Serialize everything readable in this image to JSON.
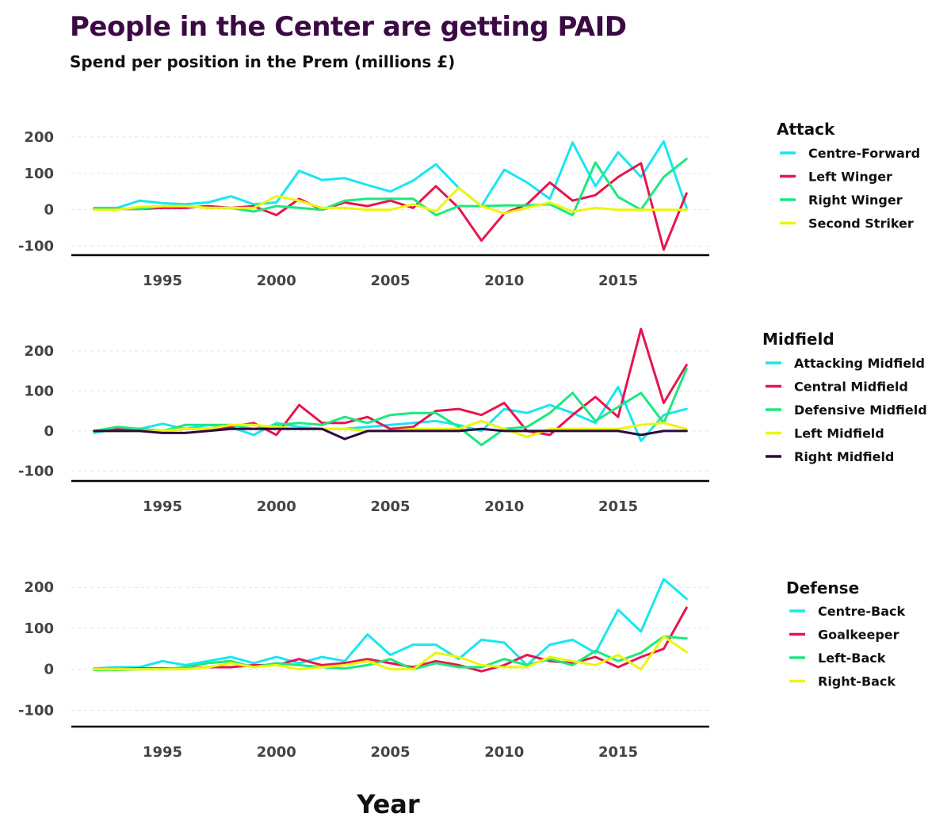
{
  "title": "People in the Center are getting PAID",
  "subtitle": "Spend per position in the Prem (millions £)",
  "xlabel": "Year",
  "chart_data": [
    {
      "type": "line",
      "legend_title": "Attack",
      "ylim": [
        -125,
        250
      ],
      "yticks": [
        -100,
        0,
        100,
        200
      ],
      "xlim": [
        1991,
        2019
      ],
      "xticks": [
        1995,
        2000,
        2005,
        2010,
        2015
      ],
      "grid": true,
      "legend": "right",
      "x": [
        1992,
        1993,
        1994,
        1995,
        1996,
        1997,
        1998,
        1999,
        2000,
        2001,
        2002,
        2003,
        2004,
        2005,
        2006,
        2007,
        2008,
        2009,
        2010,
        2011,
        2012,
        2013,
        2014,
        2015,
        2016,
        2017,
        2018
      ],
      "series": [
        {
          "name": "Centre-Forward",
          "color": "#19e6f2",
          "values": [
            5,
            5,
            25,
            18,
            15,
            20,
            37,
            15,
            20,
            107,
            82,
            87,
            68,
            50,
            80,
            125,
            60,
            10,
            110,
            75,
            30,
            185,
            65,
            158,
            90,
            188,
            5
          ]
        },
        {
          "name": "Left Winger",
          "color": "#e8154f",
          "values": [
            2,
            2,
            2,
            5,
            5,
            10,
            5,
            10,
            -15,
            30,
            0,
            20,
            10,
            25,
            5,
            65,
            5,
            -85,
            -10,
            15,
            75,
            25,
            40,
            90,
            128,
            -110,
            45
          ]
        },
        {
          "name": "Right Winger",
          "color": "#1de880",
          "values": [
            2,
            2,
            2,
            10,
            10,
            5,
            5,
            -5,
            10,
            5,
            0,
            25,
            30,
            30,
            30,
            -15,
            10,
            10,
            12,
            12,
            15,
            -15,
            130,
            35,
            0,
            90,
            140
          ]
        },
        {
          "name": "Second Striker",
          "color": "#eef50d",
          "values": [
            0,
            0,
            8,
            10,
            10,
            5,
            5,
            5,
            37,
            25,
            5,
            5,
            0,
            0,
            15,
            -5,
            60,
            10,
            -10,
            5,
            20,
            -5,
            5,
            0,
            0,
            0,
            0
          ]
        }
      ]
    },
    {
      "type": "line",
      "legend_title": "Midfield",
      "ylim": [
        -125,
        275
      ],
      "yticks": [
        -100,
        0,
        100,
        200
      ],
      "xlim": [
        1991,
        2019
      ],
      "xticks": [
        1995,
        2000,
        2005,
        2010,
        2015
      ],
      "grid": true,
      "legend": "right",
      "x": [
        1992,
        1993,
        1994,
        1995,
        1996,
        1997,
        1998,
        1999,
        2000,
        2001,
        2002,
        2003,
        2004,
        2005,
        2006,
        2007,
        2008,
        2009,
        2010,
        2011,
        2012,
        2013,
        2014,
        2015,
        2016,
        2017,
        2018
      ],
      "series": [
        {
          "name": "Attacking Midfield",
          "color": "#19e6f2",
          "values": [
            -5,
            5,
            5,
            18,
            5,
            15,
            10,
            -10,
            20,
            10,
            5,
            5,
            10,
            15,
            20,
            25,
            15,
            0,
            55,
            45,
            65,
            45,
            20,
            110,
            -25,
            40,
            55
          ]
        },
        {
          "name": "Central Midfield",
          "color": "#e8154f",
          "values": [
            0,
            5,
            5,
            0,
            5,
            5,
            10,
            20,
            -10,
            65,
            20,
            20,
            35,
            5,
            10,
            50,
            55,
            40,
            70,
            0,
            -10,
            40,
            85,
            35,
            255,
            70,
            165
          ]
        },
        {
          "name": "Defensive Midfield",
          "color": "#1de880",
          "values": [
            0,
            10,
            5,
            0,
            15,
            15,
            15,
            5,
            15,
            20,
            15,
            35,
            20,
            40,
            45,
            45,
            10,
            -35,
            5,
            10,
            45,
            95,
            25,
            60,
            95,
            20,
            155
          ]
        },
        {
          "name": "Left Midfield",
          "color": "#eef50d",
          "values": [
            0,
            0,
            0,
            0,
            5,
            5,
            15,
            15,
            10,
            5,
            5,
            5,
            0,
            0,
            5,
            5,
            5,
            25,
            5,
            -15,
            5,
            5,
            5,
            5,
            15,
            20,
            5
          ]
        },
        {
          "name": "Right Midfield",
          "color": "#2c0a3d",
          "values": [
            0,
            0,
            0,
            -5,
            -5,
            0,
            5,
            5,
            5,
            5,
            5,
            -20,
            0,
            0,
            0,
            0,
            0,
            5,
            0,
            0,
            0,
            0,
            0,
            0,
            -10,
            0,
            0
          ]
        }
      ]
    },
    {
      "type": "line",
      "legend_title": "Defense",
      "ylim": [
        -140,
        270
      ],
      "yticks": [
        -100,
        0,
        100,
        200
      ],
      "xlim": [
        1991,
        2019
      ],
      "xticks": [
        1995,
        2000,
        2005,
        2010,
        2015
      ],
      "grid": true,
      "legend": "right",
      "x": [
        1992,
        1993,
        1994,
        1995,
        1996,
        1997,
        1998,
        1999,
        2000,
        2001,
        2002,
        2003,
        2004,
        2005,
        2006,
        2007,
        2008,
        2009,
        2010,
        2011,
        2012,
        2013,
        2014,
        2015,
        2016,
        2017,
        2018
      ],
      "series": [
        {
          "name": "Centre-Back",
          "color": "#19e6f2",
          "values": [
            2,
            5,
            5,
            20,
            10,
            20,
            30,
            15,
            30,
            15,
            30,
            20,
            85,
            35,
            60,
            60,
            25,
            72,
            65,
            10,
            60,
            72,
            40,
            145,
            92,
            220,
            172
          ]
        },
        {
          "name": "Goalkeeper",
          "color": "#e8154f",
          "values": [
            0,
            0,
            2,
            2,
            2,
            5,
            5,
            10,
            10,
            25,
            10,
            15,
            25,
            15,
            5,
            20,
            10,
            -5,
            10,
            35,
            20,
            15,
            30,
            5,
            30,
            50,
            150
          ]
        },
        {
          "name": "Left-Back",
          "color": "#1de880",
          "values": [
            -2,
            -2,
            0,
            0,
            5,
            15,
            20,
            5,
            15,
            10,
            5,
            2,
            10,
            25,
            0,
            15,
            5,
            5,
            25,
            10,
            25,
            10,
            45,
            20,
            40,
            80,
            75
          ]
        },
        {
          "name": "Right-Back",
          "color": "#eef50d",
          "values": [
            0,
            0,
            0,
            0,
            0,
            5,
            15,
            5,
            10,
            0,
            5,
            10,
            20,
            0,
            0,
            40,
            30,
            10,
            5,
            5,
            30,
            20,
            10,
            35,
            0,
            80,
            42
          ]
        }
      ]
    }
  ]
}
